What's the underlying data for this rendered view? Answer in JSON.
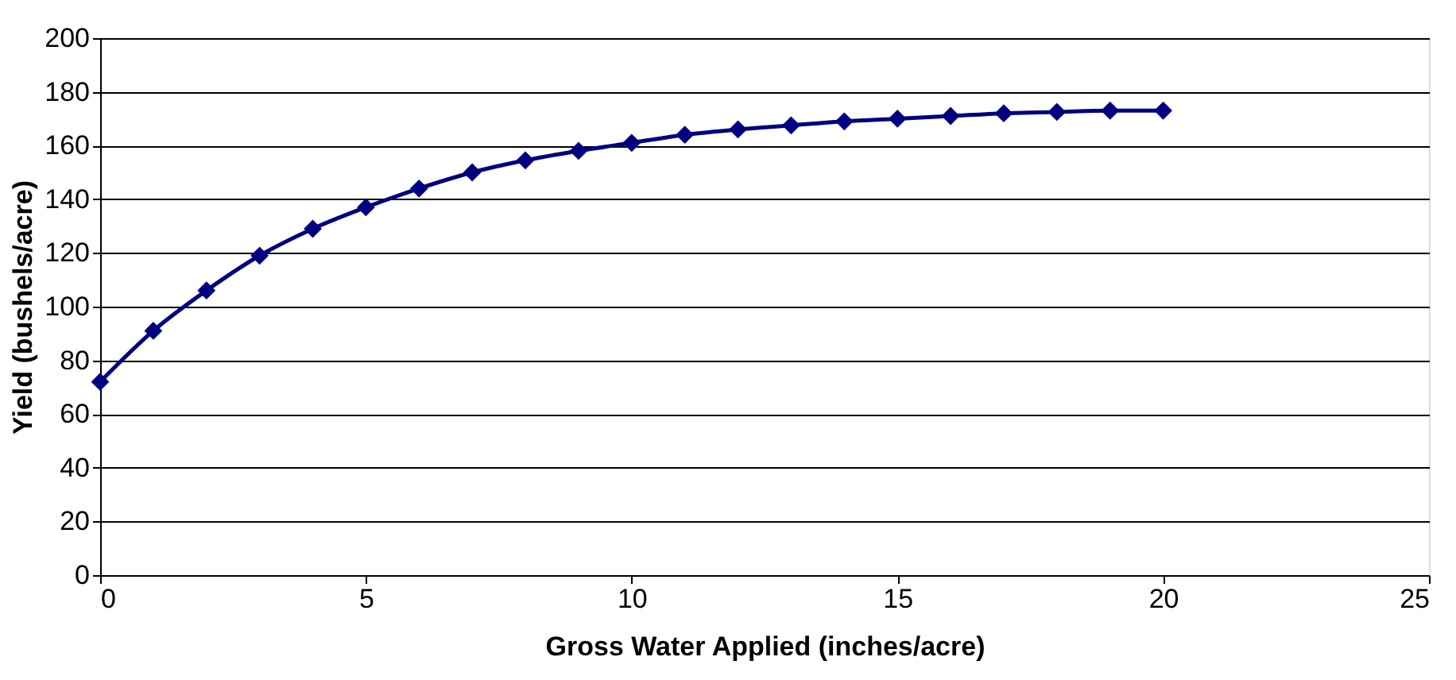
{
  "chart_data": {
    "type": "line",
    "xlabel": "Gross Water Applied (inches/acre)",
    "ylabel": "Yield (bushels/acre)",
    "x": [
      0,
      1,
      2,
      3,
      4,
      5,
      6,
      7,
      8,
      9,
      10,
      11,
      12,
      13,
      14,
      15,
      16,
      17,
      18,
      19,
      20
    ],
    "series": [
      {
        "color": "#000080",
        "values": [
          72,
          91,
          106,
          119,
          129,
          137,
          144,
          150,
          154.5,
          158,
          161,
          164,
          166,
          167.5,
          169,
          170,
          171,
          172,
          172.5,
          173,
          173
        ]
      }
    ],
    "xlim": [
      0,
      25
    ],
    "xticks": [
      0,
      5,
      10,
      15,
      20,
      25
    ],
    "ylim": [
      0,
      200
    ],
    "yticks": [
      0,
      20,
      40,
      60,
      80,
      100,
      120,
      140,
      160,
      180,
      200
    ],
    "grid": "y",
    "marker": "diamond",
    "line_style": "solid"
  }
}
